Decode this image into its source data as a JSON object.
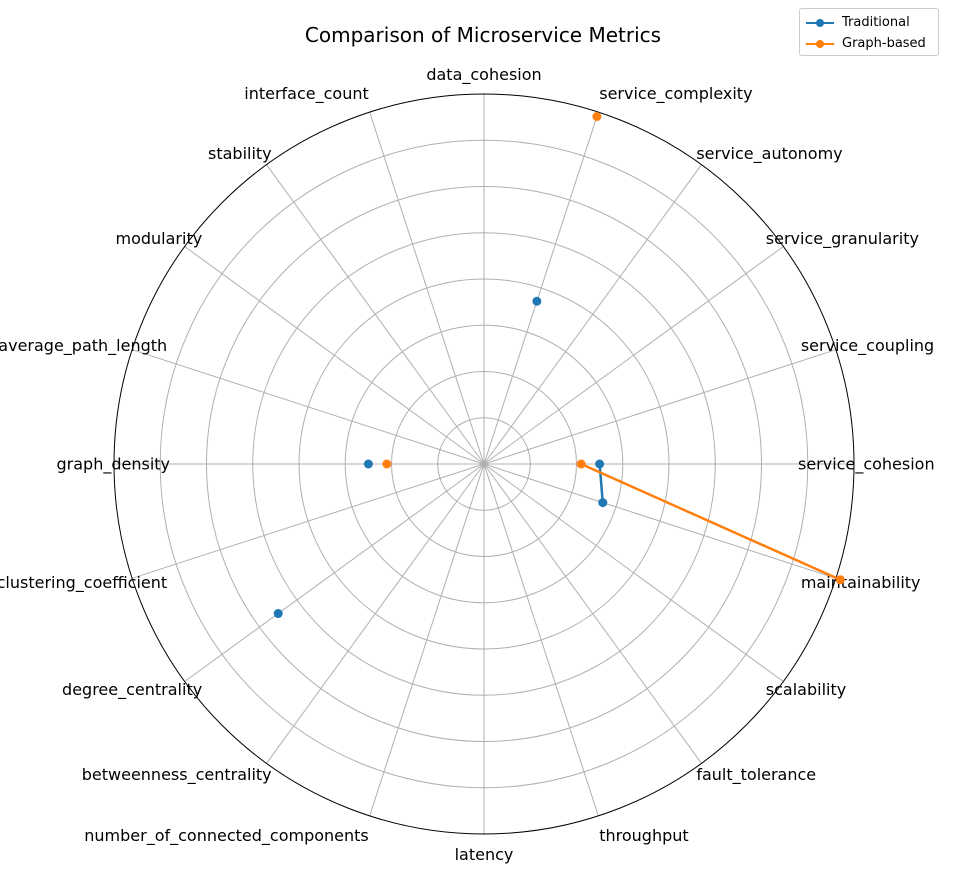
{
  "chart_data": {
    "type": "radar",
    "title": "Comparison of Microservice Metrics",
    "axes": [
      "service_cohesion",
      "service_coupling",
      "service_granularity",
      "service_autonomy",
      "service_complexity",
      "data_cohesion",
      "interface_count",
      "stability",
      "modularity",
      "average_path_length",
      "graph_density",
      "clustering_coefficient",
      "degree_centrality",
      "betweenness_centrality",
      "number_of_connected_components",
      "latency",
      "throughput",
      "fault_tolerance",
      "scalability",
      "maintainability"
    ],
    "rmax": 8,
    "grid": true,
    "legend_position": "top-right",
    "series": [
      {
        "name": "Traditional",
        "color": "#1f77b4",
        "values": [
          2.5,
          null,
          null,
          null,
          3.7,
          null,
          null,
          null,
          null,
          null,
          2.5,
          null,
          5.5,
          null,
          null,
          null,
          null,
          null,
          null,
          2.7
        ]
      },
      {
        "name": "Graph-based",
        "color": "#ff7f0e",
        "values": [
          2.1,
          null,
          null,
          null,
          7.9,
          null,
          null,
          null,
          null,
          null,
          2.1,
          null,
          null,
          null,
          null,
          null,
          null,
          null,
          null,
          8.1
        ]
      }
    ]
  }
}
